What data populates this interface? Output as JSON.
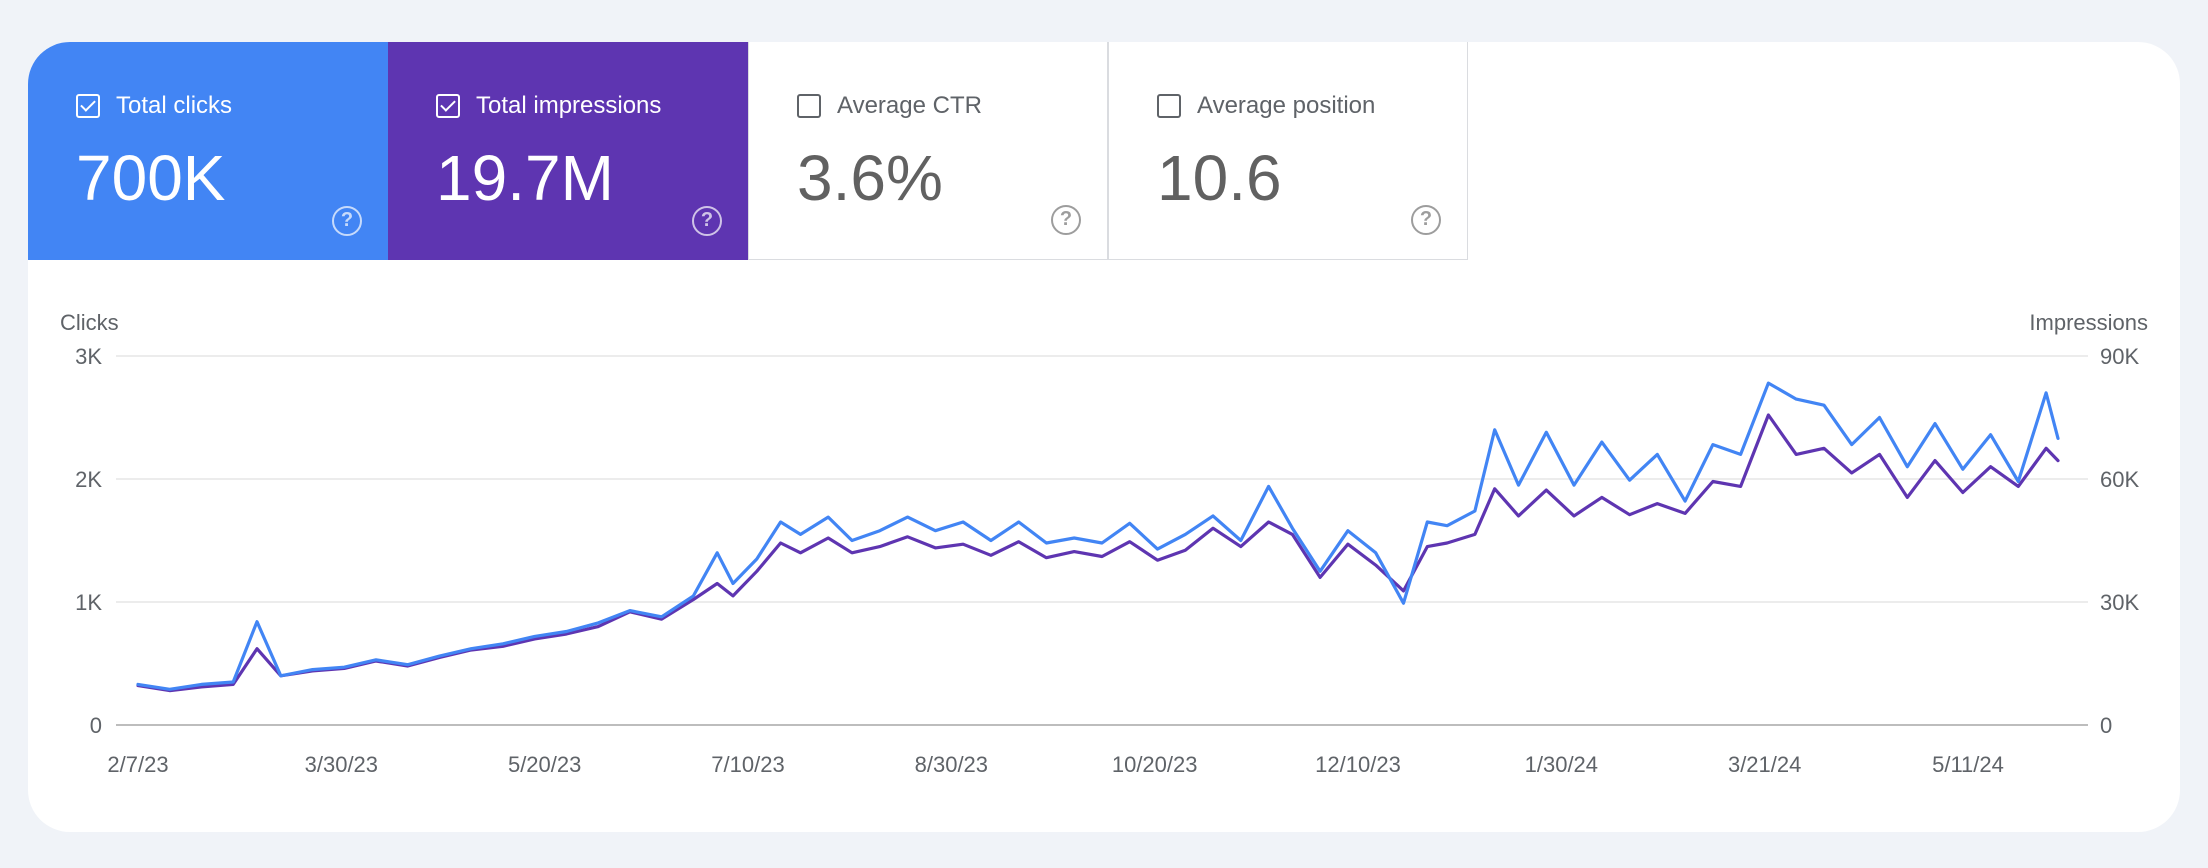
{
  "metrics": [
    {
      "label": "Total clicks",
      "value": "700K",
      "checked": true,
      "color": "#4285f4",
      "help_icon": "help-circle-icon"
    },
    {
      "label": "Total impressions",
      "value": "19.7M",
      "checked": true,
      "color": "#5e35b1",
      "help_icon": "help-circle-icon"
    },
    {
      "label": "Average CTR",
      "value": "3.6%",
      "checked": false,
      "help_icon": "help-circle-icon"
    },
    {
      "label": "Average position",
      "value": "10.6",
      "checked": false,
      "help_icon": "help-circle-icon"
    }
  ],
  "chart_data": {
    "type": "line",
    "grid": true,
    "xlabel": "",
    "y_left_title": "Clicks",
    "y_right_title": "Impressions",
    "y_left_ticks": [
      "0",
      "1K",
      "2K",
      "3K"
    ],
    "y_right_ticks": [
      "0",
      "30K",
      "60K",
      "90K"
    ],
    "ylim_left": [
      0,
      3000
    ],
    "ylim_right": [
      0,
      90000
    ],
    "x_ticks": [
      "2/7/23",
      "3/30/23",
      "5/20/23",
      "7/10/23",
      "8/30/23",
      "10/20/23",
      "12/10/23",
      "1/30/24",
      "3/21/24",
      "5/11/24"
    ],
    "xlim": [
      "2023-02-07",
      "2024-06-05"
    ],
    "series": [
      {
        "axis": "left",
        "color": "#4285f4",
        "x": [
          "2023-02-07",
          "2023-02-15",
          "2023-02-23",
          "2023-03-03",
          "2023-03-09",
          "2023-03-15",
          "2023-03-23",
          "2023-03-31",
          "2023-04-08",
          "2023-04-16",
          "2023-04-24",
          "2023-05-02",
          "2023-05-10",
          "2023-05-18",
          "2023-05-26",
          "2023-06-03",
          "2023-06-11",
          "2023-06-19",
          "2023-06-27",
          "2023-07-03",
          "2023-07-07",
          "2023-07-13",
          "2023-07-19",
          "2023-07-24",
          "2023-07-31",
          "2023-08-06",
          "2023-08-13",
          "2023-08-20",
          "2023-08-27",
          "2023-09-03",
          "2023-09-10",
          "2023-09-17",
          "2023-09-24",
          "2023-10-01",
          "2023-10-08",
          "2023-10-15",
          "2023-10-22",
          "2023-10-29",
          "2023-11-05",
          "2023-11-12",
          "2023-11-19",
          "2023-11-25",
          "2023-12-02",
          "2023-12-09",
          "2023-12-16",
          "2023-12-23",
          "2023-12-29",
          "2024-01-03",
          "2024-01-10",
          "2024-01-15",
          "2024-01-21",
          "2024-01-28",
          "2024-02-04",
          "2024-02-11",
          "2024-02-18",
          "2024-02-25",
          "2024-03-03",
          "2024-03-10",
          "2024-03-17",
          "2024-03-24",
          "2024-03-31",
          "2024-04-07",
          "2024-04-14",
          "2024-04-21",
          "2024-04-28",
          "2024-05-05",
          "2024-05-12",
          "2024-05-19",
          "2024-05-26",
          "2024-06-02",
          "2024-06-05"
        ],
        "values": [
          330,
          290,
          330,
          350,
          840,
          400,
          450,
          470,
          530,
          490,
          560,
          620,
          660,
          720,
          760,
          830,
          930,
          880,
          1050,
          1400,
          1150,
          1350,
          1650,
          1550,
          1690,
          1500,
          1580,
          1690,
          1580,
          1650,
          1500,
          1650,
          1480,
          1520,
          1480,
          1640,
          1430,
          1550,
          1700,
          1500,
          1940,
          1600,
          1250,
          1580,
          1400,
          990,
          1650,
          1620,
          1740,
          2400,
          1950,
          2380,
          1950,
          2300,
          1990,
          2200,
          1820,
          2280,
          2200,
          2780,
          2650,
          2600,
          2280,
          2500,
          2100,
          2450,
          2080,
          2360,
          1980,
          2700,
          2330
        ]
      },
      {
        "axis": "right",
        "color": "#5e35b1",
        "x": [
          "2023-02-07",
          "2023-02-15",
          "2023-02-23",
          "2023-03-03",
          "2023-03-09",
          "2023-03-15",
          "2023-03-23",
          "2023-03-31",
          "2023-04-08",
          "2023-04-16",
          "2023-04-24",
          "2023-05-02",
          "2023-05-10",
          "2023-05-18",
          "2023-05-26",
          "2023-06-03",
          "2023-06-11",
          "2023-06-19",
          "2023-06-27",
          "2023-07-03",
          "2023-07-07",
          "2023-07-13",
          "2023-07-19",
          "2023-07-24",
          "2023-07-31",
          "2023-08-06",
          "2023-08-13",
          "2023-08-20",
          "2023-08-27",
          "2023-09-03",
          "2023-09-10",
          "2023-09-17",
          "2023-09-24",
          "2023-10-01",
          "2023-10-08",
          "2023-10-15",
          "2023-10-22",
          "2023-10-29",
          "2023-11-05",
          "2023-11-12",
          "2023-11-19",
          "2023-11-25",
          "2023-12-02",
          "2023-12-09",
          "2023-12-16",
          "2023-12-23",
          "2023-12-29",
          "2024-01-03",
          "2024-01-10",
          "2024-01-15",
          "2024-01-21",
          "2024-01-28",
          "2024-02-04",
          "2024-02-11",
          "2024-02-18",
          "2024-02-25",
          "2024-03-03",
          "2024-03-10",
          "2024-03-17",
          "2024-03-24",
          "2024-03-31",
          "2024-04-07",
          "2024-04-14",
          "2024-04-21",
          "2024-04-28",
          "2024-05-05",
          "2024-05-12",
          "2024-05-19",
          "2024-05-26",
          "2024-06-02",
          "2024-06-05"
        ],
        "values": [
          9600,
          8400,
          9300,
          9900,
          18600,
          12000,
          13200,
          13800,
          15600,
          14400,
          16500,
          18300,
          19200,
          21000,
          22200,
          24000,
          27600,
          25800,
          30600,
          34500,
          31500,
          37500,
          44400,
          42000,
          45600,
          42000,
          43500,
          45900,
          43200,
          44100,
          41400,
          44700,
          40800,
          42300,
          41100,
          44700,
          40200,
          42600,
          48000,
          43500,
          49500,
          46500,
          36000,
          44100,
          39000,
          32700,
          43500,
          44400,
          46500,
          57600,
          51000,
          57300,
          51000,
          55500,
          51300,
          54000,
          51600,
          59400,
          58200,
          75600,
          66000,
          67500,
          61500,
          66000,
          55500,
          64500,
          56700,
          63000,
          58200,
          67500,
          64500
        ]
      }
    ]
  }
}
